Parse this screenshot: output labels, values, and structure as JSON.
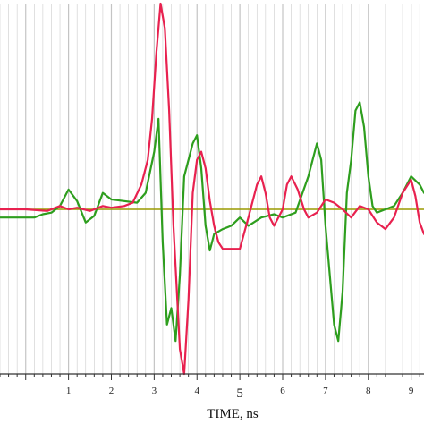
{
  "chart_data": {
    "type": "line",
    "xlabel": "TIME, ns",
    "ylabel": "",
    "xlim": [
      -0.6,
      9.3
    ],
    "ylim": [
      -1.0,
      1.25
    ],
    "x_ticks": [
      {
        "value": 1,
        "label": "1"
      },
      {
        "value": 2,
        "label": "2"
      },
      {
        "value": 3,
        "label": "3"
      },
      {
        "value": 4,
        "label": "4"
      },
      {
        "value": 5,
        "label": "5"
      },
      {
        "value": 6,
        "label": "6"
      },
      {
        "value": 7,
        "label": "7"
      },
      {
        "value": 8,
        "label": "8"
      },
      {
        "value": 9,
        "label": "9"
      }
    ],
    "grid": true,
    "baseline": 0,
    "colors": {
      "red": "#e8214f",
      "green": "#2e9e1e",
      "baseline": "#9a9a00",
      "grid": "#c4c4c4"
    },
    "series": [
      {
        "color": "#e8214f",
        "x": [
          -0.6,
          0.0,
          0.5,
          0.8,
          1.0,
          1.2,
          1.5,
          1.8,
          2.0,
          2.3,
          2.5,
          2.7,
          2.85,
          2.95,
          3.05,
          3.15,
          3.25,
          3.35,
          3.45,
          3.55,
          3.6,
          3.7,
          3.8,
          3.9,
          4.0,
          4.1,
          4.2,
          4.3,
          4.4,
          4.5,
          4.6,
          4.8,
          5.0,
          5.2,
          5.4,
          5.5,
          5.6,
          5.7,
          5.8,
          6.0,
          6.1,
          6.2,
          6.35,
          6.5,
          6.6,
          6.8,
          7.0,
          7.2,
          7.4,
          7.6,
          7.8,
          8.0,
          8.2,
          8.4,
          8.6,
          8.8,
          9.0,
          9.1,
          9.2,
          9.3
        ],
        "y": [
          0.0,
          0.0,
          -0.01,
          0.02,
          0.0,
          0.01,
          -0.01,
          0.02,
          0.01,
          0.02,
          0.04,
          0.15,
          0.3,
          0.55,
          0.95,
          1.25,
          1.1,
          0.6,
          -0.1,
          -0.6,
          -0.85,
          -1.0,
          -0.55,
          0.1,
          0.3,
          0.35,
          0.25,
          0.05,
          -0.1,
          -0.2,
          -0.24,
          -0.24,
          -0.24,
          -0.05,
          0.15,
          0.2,
          0.1,
          -0.05,
          -0.1,
          0.0,
          0.15,
          0.2,
          0.12,
          0.0,
          -0.05,
          -0.02,
          0.06,
          0.04,
          0.0,
          -0.05,
          0.02,
          0.0,
          -0.08,
          -0.12,
          -0.05,
          0.1,
          0.18,
          0.08,
          -0.08,
          -0.15
        ]
      },
      {
        "color": "#2e9e1e",
        "x": [
          -0.6,
          0.0,
          0.2,
          0.4,
          0.6,
          0.8,
          1.0,
          1.2,
          1.4,
          1.6,
          1.8,
          2.0,
          2.3,
          2.6,
          2.8,
          3.0,
          3.1,
          3.2,
          3.3,
          3.4,
          3.5,
          3.6,
          3.7,
          3.8,
          3.9,
          4.0,
          4.1,
          4.2,
          4.3,
          4.4,
          4.6,
          4.8,
          5.0,
          5.2,
          5.5,
          5.8,
          6.0,
          6.3,
          6.6,
          6.8,
          6.9,
          7.0,
          7.1,
          7.2,
          7.3,
          7.4,
          7.5,
          7.6,
          7.7,
          7.8,
          7.9,
          8.0,
          8.1,
          8.2,
          8.4,
          8.6,
          8.8,
          9.0,
          9.2,
          9.3
        ],
        "y": [
          -0.05,
          -0.05,
          -0.05,
          -0.03,
          -0.02,
          0.02,
          0.12,
          0.05,
          -0.08,
          -0.04,
          0.1,
          0.06,
          0.05,
          0.04,
          0.1,
          0.35,
          0.55,
          -0.2,
          -0.7,
          -0.6,
          -0.8,
          -0.4,
          0.2,
          0.3,
          0.4,
          0.45,
          0.25,
          -0.1,
          -0.25,
          -0.15,
          -0.12,
          -0.1,
          -0.05,
          -0.1,
          -0.05,
          -0.03,
          -0.05,
          -0.02,
          0.2,
          0.4,
          0.3,
          -0.1,
          -0.4,
          -0.7,
          -0.8,
          -0.5,
          0.1,
          0.3,
          0.6,
          0.65,
          0.5,
          0.2,
          0.02,
          -0.02,
          0.0,
          0.02,
          0.1,
          0.2,
          0.15,
          0.1
        ]
      }
    ]
  }
}
